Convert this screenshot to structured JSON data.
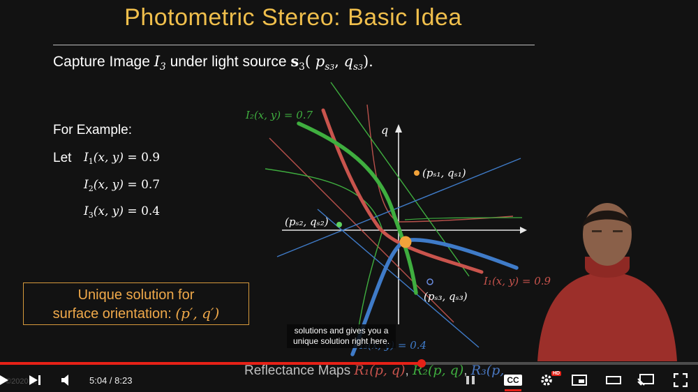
{
  "slide": {
    "title": "Photometric Stereo: Basic Idea",
    "caption": {
      "prefix": "Capture Image ",
      "image_var": "I",
      "image_sub": "3",
      "middle": " under light source ",
      "source_var": "s",
      "source_sub": "3",
      "source_args_open": "( ",
      "p_var": "p",
      "p_sub": "s",
      "p_subsub": "3",
      "comma": ", ",
      "q_var": "q",
      "q_sub": "s",
      "q_subsub": "3",
      "close": ").",
      "full": "Capture Image I3 under light source s3(ps3, qs3)."
    },
    "example_label": "For Example:",
    "let_label": "Let",
    "equations": [
      {
        "lhs": "I",
        "sub": "1",
        "args": "(x, y) = ",
        "value": "0.9"
      },
      {
        "lhs": "I",
        "sub": "2",
        "args": "(x, y) = ",
        "value": "0.7"
      },
      {
        "lhs": "I",
        "sub": "3",
        "args": "(x, y) = ",
        "value": "0.4"
      }
    ],
    "unique_box": {
      "line1": "Unique solution for",
      "line2": "surface orientation: ",
      "math": "(p′, q′)"
    },
    "plot": {
      "axis_q": "q",
      "label_I2": "I₂(x, y) = 0.7",
      "label_I1": "I₁(x, y) = 0.9",
      "label_I3": "I₃(x, y) = 0.4",
      "pt1_label": "(pₛ₁, qₛ₁)",
      "pt2_label": "(pₛ₂, qₛ₂)",
      "pt3_label": "(pₛ₃, qₛ₃)",
      "colors": {
        "red": "#c9544d",
        "green": "#3fae3f",
        "blue": "#3f7bc8",
        "orange": "#f2a33a"
      }
    },
    "bottom": {
      "prefix": "Reflectance Maps ",
      "r1": "R₁(p, q)",
      "sep1": ", ",
      "r2": "R₂(p, q)",
      "sep2": ", ",
      "r3": "R₃(p,"
    }
  },
  "subtitle": {
    "line1": "solutions and gives you a",
    "line2": "unique solution right here."
  },
  "player": {
    "current_time": "5:04",
    "separator": " / ",
    "duration": "8:23",
    "time_text": "5:04 / 8:23",
    "progress_fraction": 0.604,
    "watermark": "©2020 ...",
    "cc_label": "CC",
    "hd_label": "HD",
    "icons": [
      "play-icon",
      "next-icon",
      "volume-icon",
      "pause-icon",
      "captions-icon",
      "settings-icon",
      "miniplayer-icon",
      "theater-icon",
      "cast-icon",
      "fullscreen-icon"
    ]
  }
}
